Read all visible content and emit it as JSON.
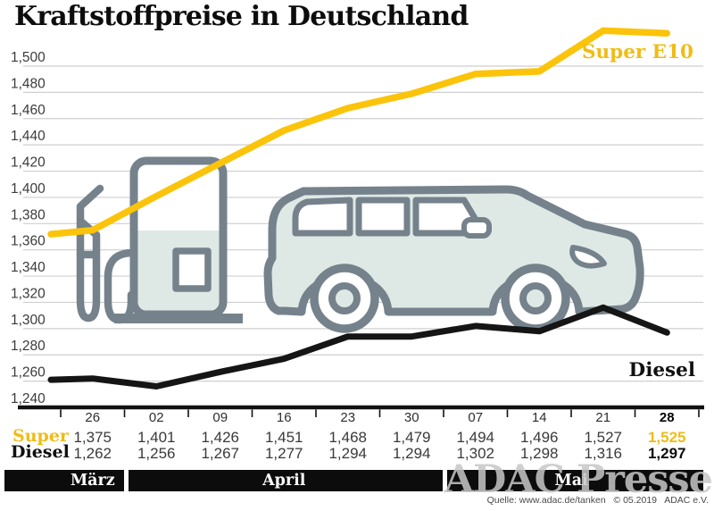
{
  "title": "Kraftstoffpreise in Deutschland",
  "watermark": "ADAC Presse",
  "source": "Quelle: www.adac.de/tanken   © 05.2019   ADAC e.V.",
  "colors": {
    "yellow_line": "#FBC40A",
    "yellow_text": "#EFBC17",
    "diesel_line": "#151515",
    "grid": "#CFCFCF",
    "axis": "#111111",
    "tick_text": "#2f2f2f",
    "icon_stroke": "#75828C",
    "icon_fill": "#DEE9E5",
    "month_bar_bg": "#0C0C0C",
    "month_bar_text": "#FFFFFF",
    "watermark_color": "#C7C7C7"
  },
  "chart_data": {
    "type": "line",
    "title": "Kraftstoffpreise in Deutschland",
    "ylim": [
      1.24,
      1.5
    ],
    "y_tick_step": 0.02,
    "grid": true,
    "legend_position": "inline-end-labels",
    "x_tick_dates": [
      "26",
      "02",
      "09",
      "16",
      "23",
      "30",
      "07",
      "14",
      "21",
      "28"
    ],
    "months": [
      {
        "label": "März",
        "cols": 1
      },
      {
        "label": "April",
        "cols": 5
      },
      {
        "label": "Mai",
        "cols": 4
      }
    ],
    "series": [
      {
        "name": "Super E10",
        "color_key": "yellow_line",
        "label_color_key": "yellow_text",
        "lead_in_value": 1.372,
        "values": [
          1.375,
          1.401,
          1.426,
          1.451,
          1.468,
          1.479,
          1.494,
          1.496,
          1.527,
          1.525
        ]
      },
      {
        "name": "Diesel",
        "color_key": "diesel_line",
        "label_color_key": "axis",
        "lead_in_value": 1.261,
        "values": [
          1.262,
          1.256,
          1.267,
          1.277,
          1.294,
          1.294,
          1.302,
          1.298,
          1.316,
          1.297
        ]
      }
    ]
  },
  "table": {
    "row_labels": {
      "super": "Super",
      "diesel": "Diesel"
    },
    "dates": [
      "26",
      "02",
      "09",
      "16",
      "23",
      "30",
      "07",
      "14",
      "21",
      "28"
    ],
    "super_values": [
      "1,375",
      "1,401",
      "1,426",
      "1,451",
      "1,468",
      "1,479",
      "1,494",
      "1,496",
      "1,527",
      "1,525"
    ],
    "diesel_values": [
      "1,262",
      "1,256",
      "1,267",
      "1,277",
      "1,294",
      "1,294",
      "1,302",
      "1,298",
      "1,316",
      "1,297"
    ]
  }
}
